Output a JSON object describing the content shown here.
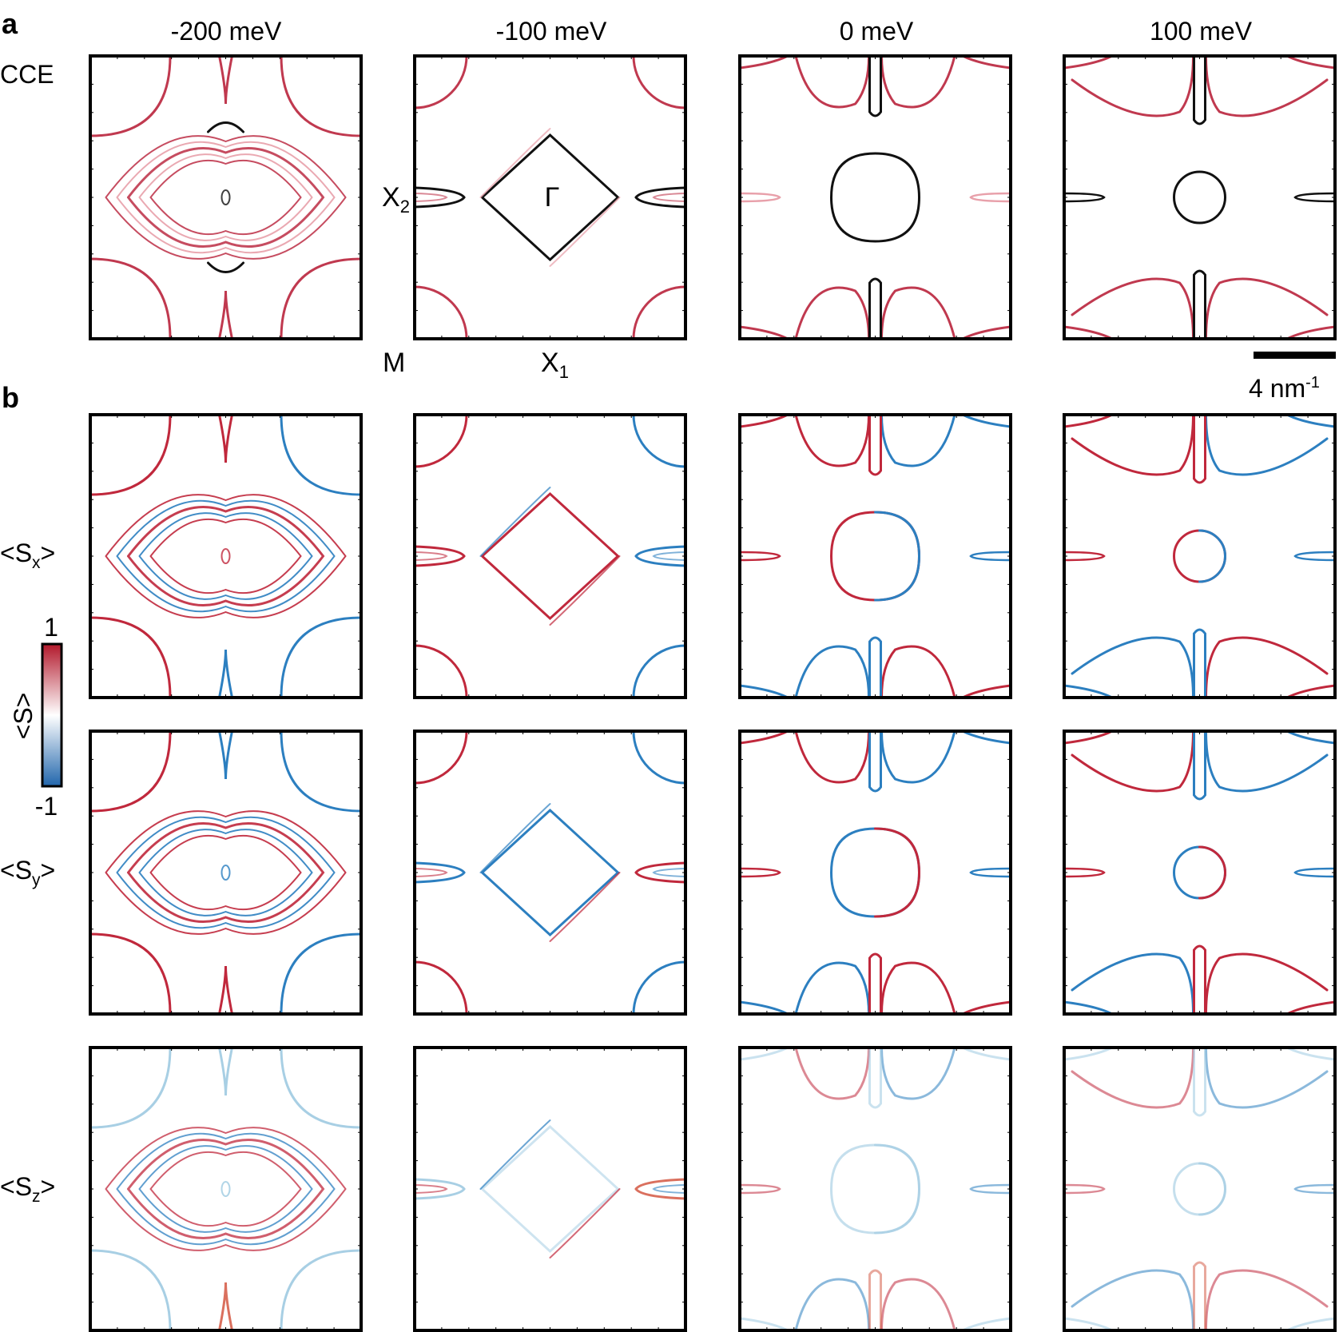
{
  "panel_labels": {
    "a": "a",
    "b": "b"
  },
  "energies": [
    "-200 meV",
    "-100 meV",
    "0 meV",
    "100 meV"
  ],
  "row_labels": {
    "cce": "CCE",
    "sx": {
      "main": "<S",
      "sub": "x",
      "end": ">"
    },
    "sy": {
      "main": "<S",
      "sub": "y",
      "end": ">"
    },
    "sz": {
      "main": "<S",
      "sub": "z",
      "end": ">"
    }
  },
  "points": {
    "gamma": "Γ",
    "x2": {
      "main": "X",
      "sub": "2"
    },
    "x1": {
      "main": "X",
      "sub": "1"
    },
    "m": "M"
  },
  "scale_bar": {
    "value": "4 nm",
    "sup": "-1"
  },
  "colorbar": {
    "title": "<S>",
    "max_label": "1",
    "min_label": "-1",
    "colors": {
      "positive": "#b2182b",
      "zero": "#ffffff",
      "negative": "#2166ac"
    }
  },
  "colors": {
    "cce_line": "#c0394f",
    "cce_dark": "#000000",
    "spin_red": "#c0283c",
    "spin_blue": "#2c7fc0"
  }
}
